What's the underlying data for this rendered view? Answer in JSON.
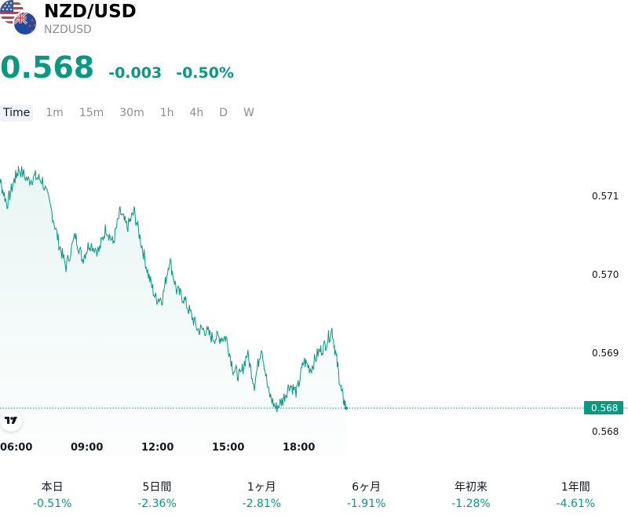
{
  "symbol": {
    "name": "NZD/USD",
    "ticker": "NZDUSD"
  },
  "quote": {
    "price": "0.568",
    "change": "-0.003",
    "change_percent": "-0.50%"
  },
  "intervals": [
    "Time",
    "1m",
    "15m",
    "30m",
    "1h",
    "4h",
    "D",
    "W"
  ],
  "colors": {
    "accent": "#089981",
    "text": "#131722",
    "muted": "#8a8e99"
  },
  "icons": {
    "us_flag": "us-flag-icon",
    "nz_flag": "nz-flag-icon",
    "logo": "tradingview-logo-icon"
  },
  "chart_data": {
    "type": "area",
    "x_ticks": [
      "06:00",
      "09:00",
      "12:00",
      "15:00",
      "18:00"
    ],
    "y_ticks": [
      "0.571",
      "0.570",
      "0.569",
      "0.568"
    ],
    "ylim": [
      0.5677,
      0.5719
    ],
    "last_price_label": "0.568",
    "x_hours": [
      5.0,
      5.4,
      5.7,
      6.0,
      6.2,
      6.6,
      6.9,
      7.2,
      7.6,
      7.9,
      8.2,
      8.6,
      8.9,
      9.2,
      9.6,
      9.9,
      10.2,
      10.5,
      10.8,
      11.1,
      11.4,
      11.7,
      12.0,
      12.3,
      12.6,
      12.9,
      13.2,
      13.5,
      13.8,
      14.1,
      14.4,
      14.7,
      15.0,
      15.3,
      15.6,
      15.9,
      16.2,
      16.5,
      16.8,
      17.1,
      17.4,
      17.7,
      18.0,
      18.3,
      18.6,
      18.9,
      19.2,
      19.5,
      19.7,
      19.9,
      20.1
    ],
    "values": [
      0.5711,
      0.5712,
      0.5709,
      0.5712,
      0.57135,
      0.5712,
      0.57125,
      0.5712,
      0.5708,
      0.5704,
      0.5701,
      0.5705,
      0.5702,
      0.5704,
      0.5703,
      0.5706,
      0.5704,
      0.5708,
      0.5706,
      0.5708,
      0.5704,
      0.57,
      0.5697,
      0.5697,
      0.5702,
      0.5698,
      0.5697,
      0.5695,
      0.5693,
      0.5693,
      0.5692,
      0.5692,
      0.5692,
      0.5688,
      0.5687,
      0.569,
      0.5686,
      0.5691,
      0.5685,
      0.5683,
      0.5684,
      0.5686,
      0.5685,
      0.5689,
      0.5688,
      0.569,
      0.5691,
      0.5693,
      0.5689,
      0.5685,
      0.5683
    ]
  },
  "performance": [
    {
      "label": "本日",
      "value": "-0.51%"
    },
    {
      "label": "5日間",
      "value": "-2.36%"
    },
    {
      "label": "1ヶ月",
      "value": "-2.81%"
    },
    {
      "label": "6ヶ月",
      "value": "-1.91%"
    },
    {
      "label": "年初来",
      "value": "-1.28%"
    },
    {
      "label": "1年間",
      "value": "-4.61%"
    }
  ]
}
